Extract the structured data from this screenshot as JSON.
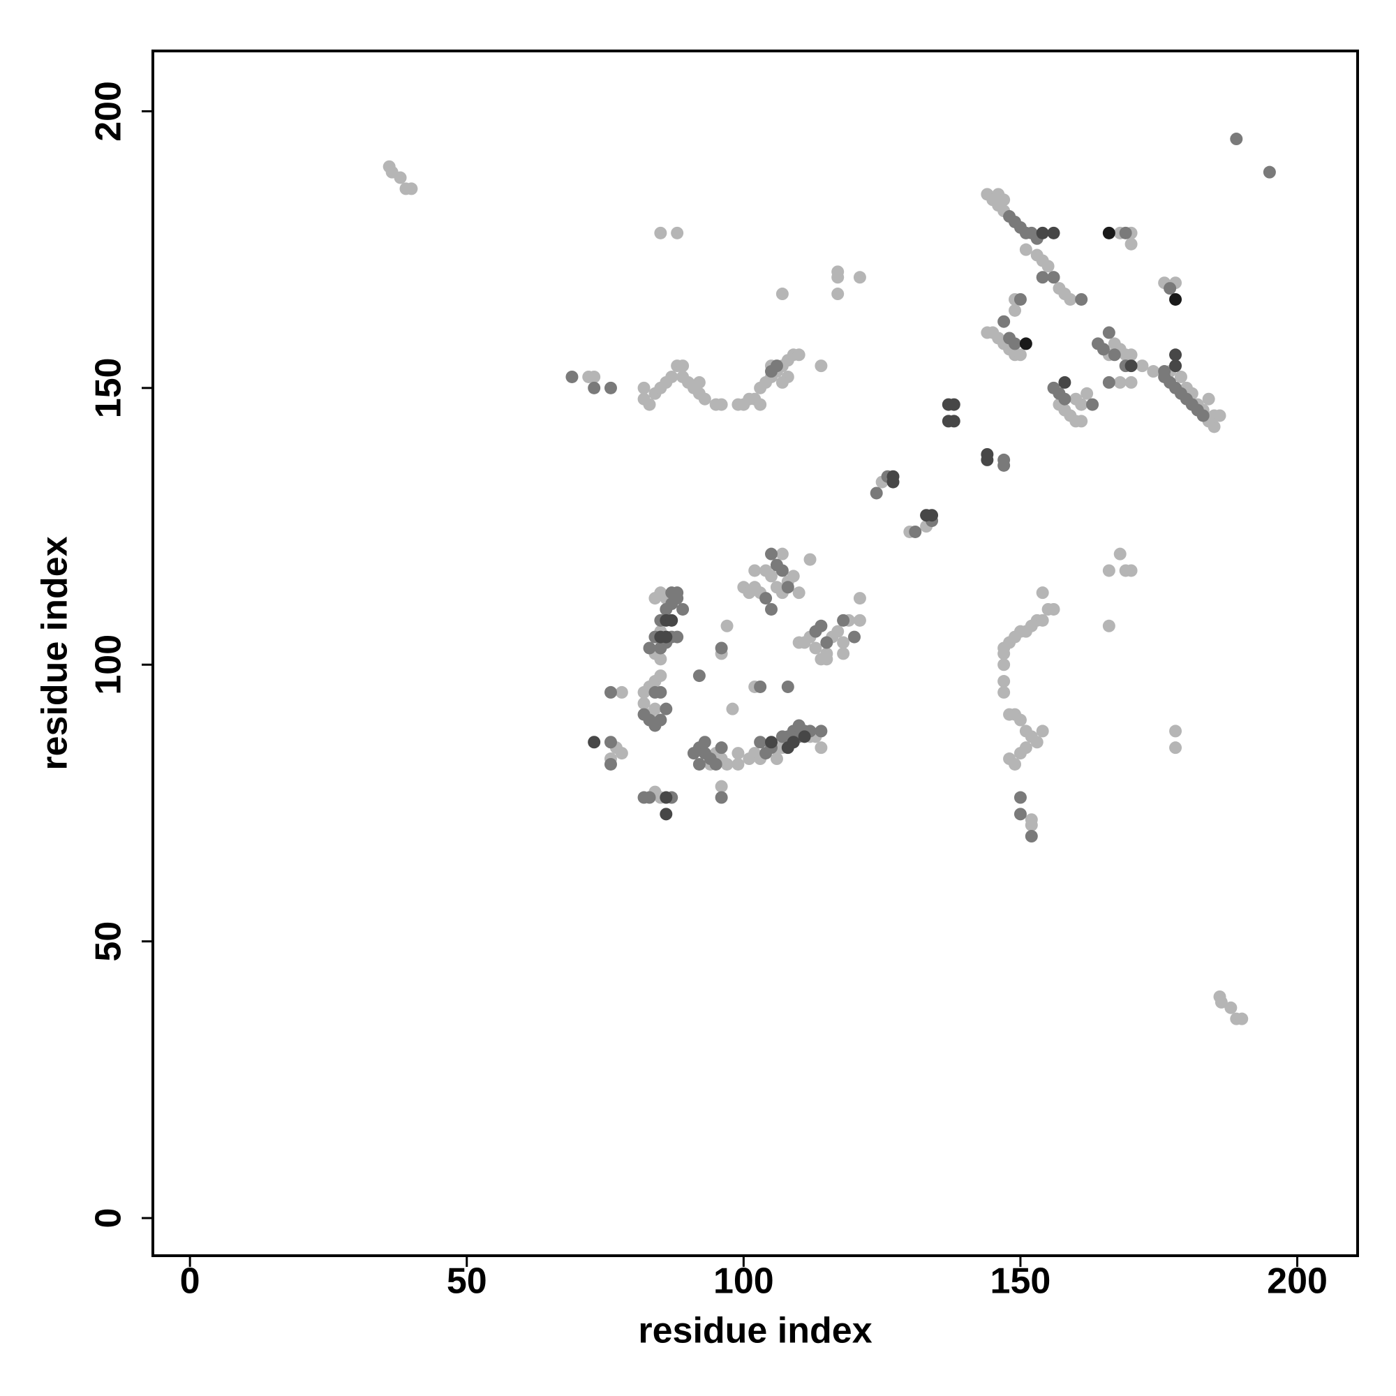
{
  "chart_data": {
    "type": "scatter",
    "x_label": "residue index",
    "y_label": "residue index",
    "xlim": [
      -6.7,
      210.9
    ],
    "ylim": [
      -6.8,
      210.9
    ],
    "xticks": [
      0,
      50,
      100,
      150,
      200
    ],
    "yticks": [
      0,
      50,
      100,
      150,
      200
    ],
    "series": [
      {
        "color": "#b5b5b5",
        "x": [
          36,
          36.5,
          38,
          39,
          40,
          186,
          186.3,
          188,
          189,
          190,
          85,
          88,
          107,
          117,
          117,
          117,
          121,
          114,
          72,
          73,
          82,
          82,
          83,
          84,
          85,
          86,
          87,
          88,
          89,
          89,
          90,
          91,
          92,
          93,
          92,
          95,
          96,
          99,
          100,
          101,
          102,
          103,
          103,
          104,
          105,
          105,
          106,
          107,
          108,
          109,
          110,
          108,
          107,
          125,
          130,
          133,
          144,
          145,
          146,
          147,
          146,
          147,
          151,
          153,
          154,
          155,
          156,
          157,
          158,
          159,
          149,
          168,
          170,
          170,
          176,
          178,
          144,
          145,
          146,
          147,
          148,
          149,
          150,
          149,
          157,
          158,
          159,
          160,
          161,
          160,
          161,
          162,
          166,
          167,
          168,
          169,
          170,
          168,
          170,
          172,
          174,
          177,
          179,
          180,
          181,
          182,
          183,
          184,
          185,
          186,
          185,
          184,
          85,
          84,
          86,
          85,
          84,
          85,
          84,
          83,
          85,
          82,
          82,
          83,
          84,
          78,
          77,
          78,
          76,
          84,
          85,
          94,
          95,
          96,
          97,
          99,
          99,
          96,
          97,
          96,
          98,
          101,
          102,
          103,
          106,
          106,
          107,
          112,
          113,
          114,
          102,
          100,
          101,
          102,
          103,
          102,
          104,
          105,
          106,
          107,
          107,
          108,
          109,
          110,
          112,
          110,
          111,
          112,
          113,
          114,
          115,
          115,
          116,
          117,
          118,
          118,
          119,
          121,
          121,
          147,
          148,
          149,
          150,
          151,
          152,
          153,
          154,
          155,
          156,
          154,
          147,
          147,
          147,
          147,
          148,
          149,
          150,
          151,
          152,
          153,
          154,
          148,
          149,
          150,
          151,
          152,
          152,
          166,
          166,
          168,
          169,
          170,
          178,
          178
        ],
        "values": [
          190,
          189,
          188,
          186,
          186,
          40,
          39,
          38,
          36,
          36,
          178,
          178,
          167,
          171,
          170,
          167,
          170,
          154,
          152,
          152,
          150,
          148,
          147,
          149,
          150,
          151,
          152,
          154,
          154,
          152,
          151,
          150,
          149,
          148,
          151,
          147,
          147,
          147,
          147,
          148,
          148,
          147,
          150,
          151,
          152,
          154,
          153,
          154,
          155,
          156,
          156,
          152,
          151,
          133,
          124,
          125,
          185,
          184,
          185,
          184,
          183,
          182,
          175,
          174,
          173,
          172,
          170,
          168,
          167,
          166,
          166,
          178,
          176,
          178,
          169,
          169,
          160,
          160,
          159,
          158,
          157,
          156,
          156,
          164,
          147,
          146,
          145,
          144,
          144,
          148,
          147,
          149,
          156,
          158,
          157,
          156,
          156,
          151,
          151,
          154,
          153,
          153,
          152,
          150,
          149,
          147,
          146,
          148,
          145,
          145,
          143,
          144,
          113,
          112,
          112,
          106,
          102,
          101,
          97,
          96,
          98,
          95,
          93,
          91,
          92,
          95,
          85,
          84,
          83,
          77,
          76,
          82,
          84,
          83,
          82,
          82,
          84,
          78,
          107,
          102,
          92,
          83,
          84,
          83,
          83,
          85,
          85,
          87,
          87,
          85,
          96,
          114,
          113,
          114,
          113,
          117,
          117,
          116,
          114,
          113,
          120,
          115,
          116,
          113,
          119,
          104,
          104,
          105,
          103,
          101,
          101,
          102,
          105,
          106,
          104,
          102,
          108,
          108,
          112,
          103,
          104,
          105,
          106,
          106,
          107,
          108,
          108,
          110,
          110,
          113,
          100,
          102,
          97,
          95,
          91,
          91,
          90,
          88,
          87,
          86,
          88,
          83,
          82,
          84,
          85,
          71,
          72,
          107,
          117,
          120,
          117,
          117,
          88,
          85
        ]
      },
      {
        "color": "#7a7a7a",
        "x": [
          189,
          195,
          69,
          73,
          76,
          105,
          106,
          124,
          126,
          131,
          134,
          147,
          147,
          148,
          149,
          150,
          151,
          152,
          153,
          154,
          156,
          161,
          150,
          169,
          177,
          147,
          148,
          149,
          156,
          157,
          158,
          163,
          164,
          166,
          167,
          165,
          169,
          166,
          176,
          176,
          177,
          178,
          179,
          180,
          181,
          182,
          183,
          83,
          84,
          85,
          86,
          85,
          86,
          87,
          87,
          88,
          88,
          89,
          87,
          88,
          84,
          85,
          82,
          83,
          84,
          85,
          86,
          76,
          76,
          76,
          82,
          83,
          87,
          91,
          92,
          93,
          94,
          95,
          93,
          96,
          92,
          96,
          92,
          96,
          103,
          104,
          105,
          107,
          108,
          109,
          110,
          111,
          112,
          114,
          110,
          103,
          108,
          105,
          106,
          104,
          105,
          107,
          108,
          113,
          114,
          115,
          118,
          120,
          150,
          150,
          152
        ],
        "values": [
          195,
          189,
          152,
          150,
          150,
          153,
          154,
          131,
          134,
          124,
          126,
          137,
          136,
          181,
          180,
          179,
          178,
          178,
          177,
          170,
          170,
          166,
          166,
          178,
          168,
          162,
          159,
          158,
          150,
          149,
          148,
          147,
          158,
          160,
          156,
          157,
          154,
          151,
          153,
          152,
          151,
          150,
          149,
          148,
          147,
          146,
          145,
          103,
          105,
          103,
          104,
          108,
          110,
          111,
          113,
          113,
          112,
          110,
          105,
          105,
          95,
          95,
          91,
          90,
          89,
          90,
          92,
          95,
          86,
          82,
          76,
          76,
          76,
          84,
          85,
          84,
          83,
          82,
          86,
          85,
          82,
          76,
          98,
          103,
          86,
          84,
          85,
          87,
          87,
          88,
          89,
          88,
          88,
          88,
          87,
          96,
          96,
          120,
          118,
          112,
          110,
          117,
          114,
          106,
          107,
          104,
          108,
          105,
          76,
          73,
          69
        ]
      },
      {
        "color": "#474747",
        "x": [
          137,
          138,
          137,
          138,
          144,
          144,
          127,
          127,
          133,
          134,
          154,
          156,
          158,
          170,
          178,
          178,
          86,
          87,
          85,
          86,
          73,
          86,
          86,
          105,
          108,
          109,
          111
        ],
        "values": [
          147,
          147,
          144,
          144,
          138,
          137,
          134,
          133,
          127,
          127,
          178,
          178,
          151,
          154,
          154,
          156,
          108,
          108,
          105,
          105,
          86,
          76,
          73,
          86,
          85,
          86,
          87
        ]
      },
      {
        "color": "#1a1a1a",
        "x": [
          166,
          178,
          151
        ],
        "values": [
          178,
          166,
          158
        ]
      }
    ]
  }
}
